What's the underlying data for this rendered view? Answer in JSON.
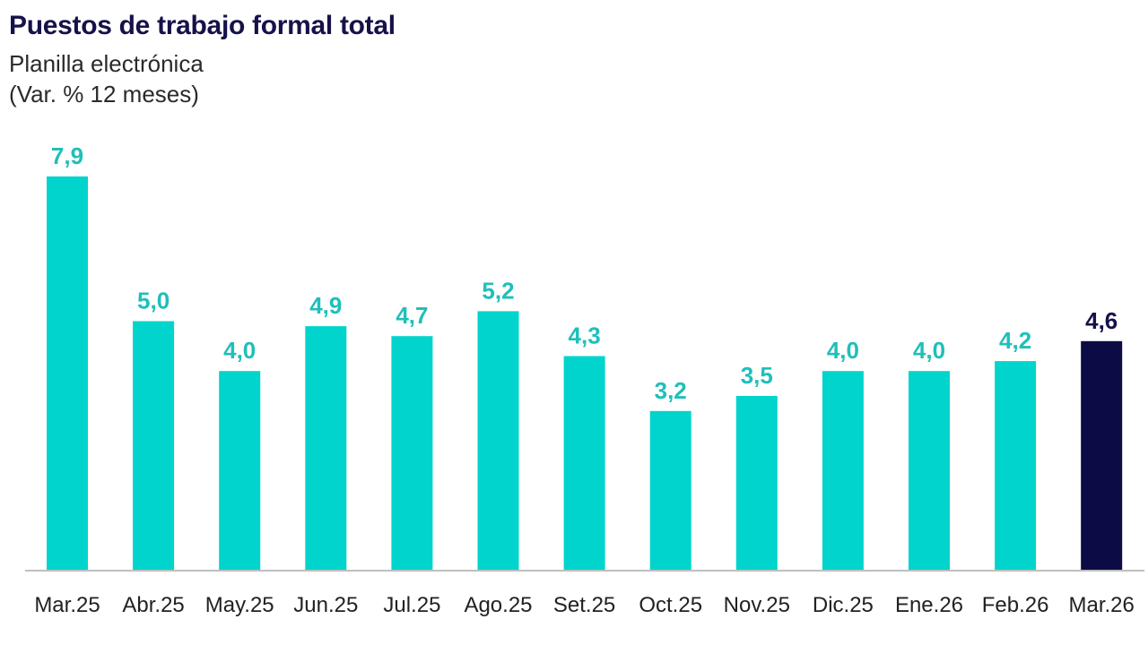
{
  "header": {
    "title": "Puestos de trabajo formal total",
    "subtitle": "Planilla electrónica",
    "unit": "(Var. % 12 meses)"
  },
  "colors": {
    "bar": "#00d4cc",
    "bar_highlight": "#0d0b45",
    "label": "#1fbfba",
    "label_highlight": "#15124a",
    "axis": "#bfbfbf"
  },
  "chart_data": {
    "type": "bar",
    "categories": [
      "Mar.25",
      "Abr.25",
      "May.25",
      "Jun.25",
      "Jul.25",
      "Ago.25",
      "Set.25",
      "Oct.25",
      "Nov.25",
      "Dic.25",
      "Ene.26",
      "Feb.26",
      "Mar.26"
    ],
    "values": [
      7.9,
      5.0,
      4.0,
      4.9,
      4.7,
      5.2,
      4.3,
      3.2,
      3.5,
      4.0,
      4.0,
      4.2,
      4.6
    ],
    "data_labels": [
      "7,9",
      "5,0",
      "4,0",
      "4,9",
      "4,7",
      "5,2",
      "4,3",
      "3,2",
      "3,5",
      "4,0",
      "4,0",
      "4,2",
      "4,6"
    ],
    "highlight_index": 12,
    "ylim": [
      0,
      8
    ],
    "grid": false,
    "legend": "none"
  }
}
